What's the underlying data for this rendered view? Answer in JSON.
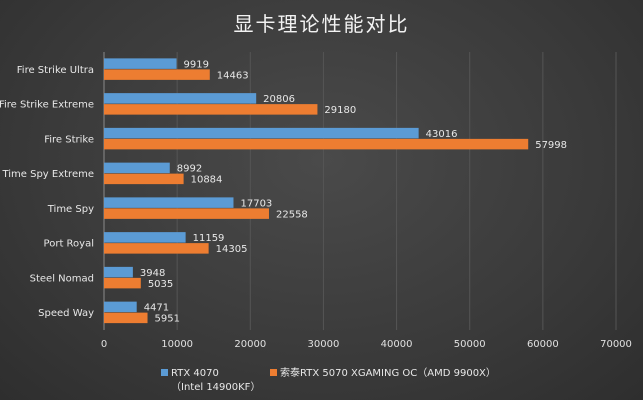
{
  "chart_data": {
    "type": "bar",
    "orientation": "horizontal",
    "title": "显卡理论性能对比",
    "categories": [
      "Fire Strike Ultra",
      "Fire Strike Extreme",
      "Fire Strike",
      "Time Spy Extreme",
      "Time Spy",
      "Port Royal",
      "Steel Nomad",
      "Speed Way"
    ],
    "series": [
      {
        "name": "RTX 4070",
        "name_line2": "（Intel 14900KF）",
        "color": "#5b9bd5",
        "values": [
          9919,
          20806,
          43016,
          8992,
          17703,
          11159,
          3948,
          4471
        ]
      },
      {
        "name": "索泰RTX 5070 XGAMING OC（AMD 9900X）",
        "color": "#ed7d31",
        "values": [
          14463,
          29180,
          57998,
          10884,
          22558,
          14305,
          5035,
          5951
        ]
      }
    ],
    "xlim": [
      0,
      70000
    ],
    "xticks": [
      0,
      10000,
      20000,
      30000,
      40000,
      50000,
      60000,
      70000
    ],
    "grid": true,
    "legend_position": "bottom",
    "data_labels": true
  }
}
